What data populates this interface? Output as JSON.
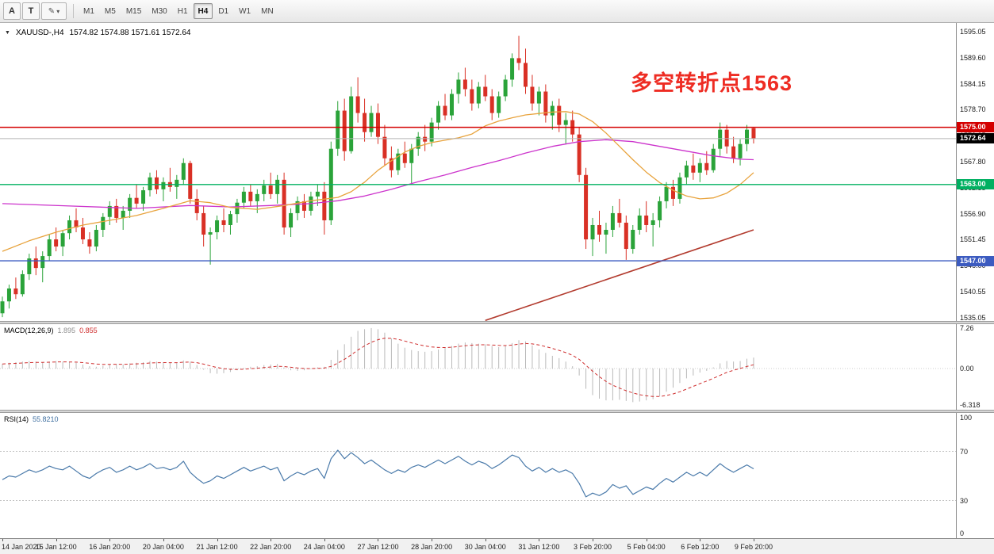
{
  "colors": {
    "candle_up": "#2aa339",
    "candle_down": "#d93025",
    "ma_orange": "#e8a33d",
    "ma_magenta": "#cc33cc",
    "trendline": "#b23b2e",
    "macd_hist": "#b9b9b9",
    "macd_signal": "#cf2e2e",
    "rsi_line": "#4a7aaa",
    "rsi_level": "#c4c4c4",
    "bid_line": "#b5b5b5",
    "annotation": "#ee2c23"
  },
  "toolbar": {
    "buttons": [
      {
        "label": "A",
        "name": "text-label-tool-button"
      },
      {
        "label": "T",
        "name": "template-tool-button"
      }
    ],
    "draw_button": {
      "glyph": "✎",
      "caret": "▾"
    },
    "timeframes": [
      "M1",
      "M5",
      "M15",
      "M30",
      "H1",
      "H4",
      "D1",
      "W1",
      "MN"
    ],
    "active_timeframe": "H4"
  },
  "chart": {
    "dropdown_icon": "▼",
    "title": "XAUUSD-,H4",
    "ohlc_display": "1574.82 1574.88 1571.61 1572.64",
    "annotation": {
      "text": "多空转折点1563"
    },
    "levels": [
      {
        "price": 1575.0,
        "label": "1575.00",
        "color": "#d40000"
      },
      {
        "price": 1563.0,
        "label": "1563.00",
        "color": "#00b061"
      },
      {
        "price": 1547.0,
        "label": "1547.00",
        "color": "#3c5bc0"
      }
    ],
    "bid": {
      "price": 1572.64,
      "label": "1572.64",
      "color": "#000000"
    }
  },
  "chart_data": {
    "type": "candlestick",
    "symbol": "XAUUSD-",
    "timeframe": "H4",
    "title": "XAUUSD-,H4 1574.82 1574.88 1571.61 1572.64",
    "y_axis_labels": [
      "1595.05",
      "1589.60",
      "1584.15",
      "1578.70",
      "1573.25",
      "1567.80",
      "1562.35",
      "1556.90",
      "1551.45",
      "1546.00",
      "1540.55",
      "1535.05"
    ],
    "x_labels": [
      "14 Jan 2020",
      "15 Jan 12:00",
      "16 Jan 20:00",
      "20 Jan 04:00",
      "21 Jan 12:00",
      "22 Jan 20:00",
      "24 Jan 04:00",
      "27 Jan 12:00",
      "28 Jan 20:00",
      "30 Jan 04:00",
      "31 Jan 12:00",
      "3 Feb 20:00",
      "5 Feb 04:00",
      "6 Feb 12:00",
      "9 Feb 20:00"
    ],
    "x_label_every": 8,
    "candles": [
      [
        1536.0,
        1539.5,
        1535.2,
        1538.5
      ],
      [
        1538.5,
        1542.0,
        1537.0,
        1541.2
      ],
      [
        1541.2,
        1543.5,
        1539.0,
        1540.0
      ],
      [
        1540.0,
        1545.0,
        1539.5,
        1544.2
      ],
      [
        1544.2,
        1548.5,
        1543.0,
        1547.5
      ],
      [
        1547.5,
        1550.0,
        1544.0,
        1545.5
      ],
      [
        1545.5,
        1549.0,
        1542.5,
        1548.0
      ],
      [
        1548.0,
        1552.5,
        1547.0,
        1551.5
      ],
      [
        1551.5,
        1554.0,
        1549.0,
        1550.0
      ],
      [
        1550.0,
        1553.5,
        1548.0,
        1552.8
      ],
      [
        1552.8,
        1556.5,
        1551.5,
        1555.5
      ],
      [
        1555.5,
        1558.0,
        1553.0,
        1554.0
      ],
      [
        1554.0,
        1556.0,
        1550.5,
        1551.5
      ],
      [
        1551.5,
        1553.0,
        1548.5,
        1550.0
      ],
      [
        1550.0,
        1554.5,
        1549.0,
        1553.5
      ],
      [
        1553.5,
        1557.0,
        1552.0,
        1556.2
      ],
      [
        1556.2,
        1559.5,
        1554.5,
        1558.5
      ],
      [
        1558.5,
        1560.0,
        1555.0,
        1556.0
      ],
      [
        1556.0,
        1558.5,
        1553.5,
        1557.5
      ],
      [
        1557.5,
        1561.0,
        1556.0,
        1560.2
      ],
      [
        1560.2,
        1563.0,
        1558.0,
        1559.0
      ],
      [
        1559.0,
        1562.5,
        1557.5,
        1561.8
      ],
      [
        1561.8,
        1565.5,
        1560.5,
        1564.5
      ],
      [
        1564.5,
        1566.0,
        1561.0,
        1562.0
      ],
      [
        1562.0,
        1564.5,
        1559.5,
        1563.5
      ],
      [
        1563.5,
        1566.5,
        1561.5,
        1562.5
      ],
      [
        1562.5,
        1565.0,
        1560.0,
        1564.0
      ],
      [
        1564.0,
        1568.5,
        1563.0,
        1567.5
      ],
      [
        1567.5,
        1568.0,
        1559.0,
        1560.0
      ],
      [
        1560.0,
        1562.0,
        1555.5,
        1557.0
      ],
      [
        1557.0,
        1558.5,
        1550.0,
        1552.5
      ],
      [
        1552.5,
        1554.0,
        1546.2,
        1553.0
      ],
      [
        1553.0,
        1556.5,
        1551.5,
        1555.5
      ],
      [
        1555.5,
        1558.0,
        1553.0,
        1554.5
      ],
      [
        1554.5,
        1557.5,
        1552.5,
        1556.8
      ],
      [
        1556.8,
        1560.0,
        1555.0,
        1559.2
      ],
      [
        1559.2,
        1562.5,
        1558.0,
        1561.5
      ],
      [
        1561.5,
        1563.0,
        1558.5,
        1559.5
      ],
      [
        1559.5,
        1562.0,
        1557.0,
        1561.0
      ],
      [
        1561.0,
        1564.0,
        1559.5,
        1562.8
      ],
      [
        1562.8,
        1565.5,
        1560.0,
        1561.0
      ],
      [
        1561.0,
        1565.0,
        1559.0,
        1564.0
      ],
      [
        1564.0,
        1565.5,
        1552.5,
        1554.0
      ],
      [
        1554.0,
        1558.0,
        1552.0,
        1557.0
      ],
      [
        1557.0,
        1560.5,
        1555.5,
        1559.5
      ],
      [
        1559.5,
        1561.0,
        1556.0,
        1557.5
      ],
      [
        1557.5,
        1561.5,
        1556.5,
        1560.5
      ],
      [
        1560.5,
        1563.0,
        1558.5,
        1561.5
      ],
      [
        1561.5,
        1563.5,
        1552.5,
        1555.5
      ],
      [
        1555.5,
        1572.0,
        1554.5,
        1570.5
      ],
      [
        1570.5,
        1580.5,
        1569.0,
        1578.5
      ],
      [
        1578.5,
        1581.0,
        1568.0,
        1570.0
      ],
      [
        1570.0,
        1583.5,
        1569.5,
        1581.5
      ],
      [
        1581.5,
        1585.5,
        1576.0,
        1578.0
      ],
      [
        1578.0,
        1581.0,
        1572.0,
        1574.0
      ],
      [
        1574.0,
        1579.5,
        1573.0,
        1578.0
      ],
      [
        1578.0,
        1580.0,
        1571.5,
        1573.0
      ],
      [
        1573.0,
        1575.5,
        1567.0,
        1568.5
      ],
      [
        1568.5,
        1571.0,
        1564.5,
        1566.0
      ],
      [
        1566.0,
        1570.5,
        1565.0,
        1569.5
      ],
      [
        1569.5,
        1572.0,
        1566.5,
        1567.5
      ],
      [
        1567.5,
        1571.5,
        1563.3,
        1570.5
      ],
      [
        1570.5,
        1574.0,
        1569.0,
        1573.0
      ],
      [
        1573.0,
        1575.5,
        1570.0,
        1572.0
      ],
      [
        1572.0,
        1577.0,
        1571.0,
        1576.0
      ],
      [
        1576.0,
        1580.5,
        1574.5,
        1579.5
      ],
      [
        1579.5,
        1582.0,
        1576.5,
        1577.5
      ],
      [
        1577.5,
        1583.0,
        1576.5,
        1582.0
      ],
      [
        1582.0,
        1586.5,
        1580.0,
        1585.0
      ],
      [
        1585.0,
        1587.5,
        1581.5,
        1583.0
      ],
      [
        1583.0,
        1585.0,
        1578.5,
        1580.0
      ],
      [
        1580.0,
        1584.5,
        1579.0,
        1583.5
      ],
      [
        1583.5,
        1586.0,
        1580.5,
        1581.5
      ],
      [
        1581.5,
        1583.0,
        1576.5,
        1578.0
      ],
      [
        1578.0,
        1582.5,
        1577.0,
        1581.5
      ],
      [
        1581.5,
        1586.0,
        1580.5,
        1585.0
      ],
      [
        1585.0,
        1590.5,
        1583.5,
        1589.5
      ],
      [
        1589.5,
        1594.2,
        1587.0,
        1588.5
      ],
      [
        1588.5,
        1591.5,
        1582.0,
        1583.5
      ],
      [
        1583.5,
        1586.0,
        1578.5,
        1580.0
      ],
      [
        1580.0,
        1583.5,
        1577.5,
        1582.5
      ],
      [
        1582.5,
        1584.0,
        1576.0,
        1577.5
      ],
      [
        1577.5,
        1580.5,
        1574.5,
        1579.5
      ],
      [
        1579.5,
        1581.0,
        1574.0,
        1575.5
      ],
      [
        1575.5,
        1578.0,
        1571.5,
        1576.5
      ],
      [
        1576.5,
        1578.5,
        1572.0,
        1573.5
      ],
      [
        1573.5,
        1575.0,
        1563.5,
        1565.0
      ],
      [
        1565.0,
        1566.5,
        1549.5,
        1551.5
      ],
      [
        1551.5,
        1556.0,
        1548.0,
        1554.5
      ],
      [
        1554.5,
        1557.5,
        1551.0,
        1552.5
      ],
      [
        1552.5,
        1555.0,
        1548.5,
        1553.5
      ],
      [
        1553.5,
        1558.5,
        1552.0,
        1557.0
      ],
      [
        1557.0,
        1560.0,
        1554.0,
        1555.0
      ],
      [
        1555.0,
        1556.5,
        1547.2,
        1549.5
      ],
      [
        1549.5,
        1554.5,
        1548.5,
        1553.5
      ],
      [
        1553.5,
        1558.0,
        1552.5,
        1556.5
      ],
      [
        1556.5,
        1559.5,
        1553.0,
        1554.5
      ],
      [
        1554.5,
        1557.0,
        1550.0,
        1555.5
      ],
      [
        1555.5,
        1560.5,
        1554.0,
        1559.5
      ],
      [
        1559.5,
        1563.5,
        1558.0,
        1562.5
      ],
      [
        1562.5,
        1564.0,
        1558.5,
        1560.0
      ],
      [
        1560.0,
        1565.5,
        1559.0,
        1564.5
      ],
      [
        1564.5,
        1568.0,
        1563.0,
        1567.0
      ],
      [
        1567.0,
        1569.5,
        1564.0,
        1565.5
      ],
      [
        1565.5,
        1568.5,
        1563.5,
        1567.5
      ],
      [
        1567.5,
        1570.0,
        1565.0,
        1566.0
      ],
      [
        1566.0,
        1571.5,
        1565.5,
        1570.5
      ],
      [
        1570.5,
        1576.0,
        1569.0,
        1574.5
      ],
      [
        1574.5,
        1575.5,
        1569.5,
        1571.0
      ],
      [
        1571.0,
        1573.0,
        1567.5,
        1568.5
      ],
      [
        1568.5,
        1572.5,
        1567.0,
        1571.5
      ],
      [
        1571.5,
        1575.5,
        1570.0,
        1574.5
      ],
      [
        1574.82,
        1574.88,
        1571.61,
        1572.64
      ]
    ],
    "ma_magenta": [
      [
        0,
        1559
      ],
      [
        10,
        1558.5
      ],
      [
        20,
        1558
      ],
      [
        28,
        1558.6
      ],
      [
        34,
        1558.3
      ],
      [
        40,
        1558.6
      ],
      [
        46,
        1559
      ],
      [
        50,
        1559.6
      ],
      [
        54,
        1560.6
      ],
      [
        58,
        1562
      ],
      [
        62,
        1563.6
      ],
      [
        66,
        1565
      ],
      [
        70,
        1566.6
      ],
      [
        74,
        1568
      ],
      [
        78,
        1569.6
      ],
      [
        82,
        1571
      ],
      [
        86,
        1572
      ],
      [
        90,
        1572.4
      ],
      [
        94,
        1572
      ],
      [
        98,
        1571
      ],
      [
        102,
        1570
      ],
      [
        106,
        1569
      ],
      [
        110,
        1568.3
      ],
      [
        112,
        1568.2
      ]
    ],
    "ma_orange": [
      [
        0,
        1549
      ],
      [
        4,
        1551.2
      ],
      [
        8,
        1553
      ],
      [
        12,
        1554.5
      ],
      [
        16,
        1555.5
      ],
      [
        20,
        1556.5
      ],
      [
        24,
        1558
      ],
      [
        28,
        1559.6
      ],
      [
        31,
        1559.2
      ],
      [
        34,
        1558.2
      ],
      [
        38,
        1557.8
      ],
      [
        42,
        1558.6
      ],
      [
        46,
        1559.6
      ],
      [
        50,
        1560.3
      ],
      [
        52,
        1561.5
      ],
      [
        54,
        1563.5
      ],
      [
        56,
        1566
      ],
      [
        58,
        1568
      ],
      [
        60,
        1569.8
      ],
      [
        62,
        1571
      ],
      [
        64,
        1571.8
      ],
      [
        66,
        1572.3
      ],
      [
        68,
        1572.8
      ],
      [
        70,
        1573.6
      ],
      [
        72,
        1575.3
      ],
      [
        74,
        1576.3
      ],
      [
        76,
        1577
      ],
      [
        78,
        1577.6
      ],
      [
        80,
        1577.9
      ],
      [
        82,
        1578.2
      ],
      [
        84,
        1578.3
      ],
      [
        86,
        1577.8
      ],
      [
        88,
        1576.2
      ],
      [
        90,
        1573.8
      ],
      [
        92,
        1571
      ],
      [
        94,
        1568.2
      ],
      [
        96,
        1565.6
      ],
      [
        98,
        1563.4
      ],
      [
        100,
        1561.8
      ],
      [
        102,
        1560.6
      ],
      [
        104,
        1560
      ],
      [
        106,
        1560.2
      ],
      [
        108,
        1561.2
      ],
      [
        110,
        1563
      ],
      [
        112,
        1565.5
      ]
    ],
    "trendline": [
      [
        72,
        1534.5
      ],
      [
        112,
        1553.5
      ]
    ],
    "macd": {
      "label": "MACD(12,26,9)",
      "current": "1.895",
      "signal_current": "0.855",
      "axis_labels": [
        "7.26",
        "0.00",
        "-6.318"
      ],
      "values": [
        0.8,
        1.0,
        1.1,
        1.2,
        1.3,
        1.2,
        1.1,
        1.2,
        1.3,
        1.2,
        1.1,
        1.0,
        0.7,
        0.4,
        0.3,
        0.5,
        0.7,
        0.8,
        0.7,
        0.9,
        1.0,
        1.1,
        1.3,
        1.2,
        1.1,
        1.0,
        1.0,
        1.4,
        1.2,
        0.6,
        -0.2,
        -0.8,
        -0.9,
        -0.8,
        -0.6,
        -0.3,
        0.1,
        0.3,
        0.4,
        0.6,
        0.7,
        0.8,
        0.2,
        -0.3,
        -0.4,
        -0.3,
        -0.1,
        0.2,
        0.3,
        1.5,
        3.2,
        4.2,
        5.5,
        6.5,
        6.8,
        7.0,
        6.8,
        6.2,
        5.2,
        4.3,
        3.6,
        3.2,
        3.0,
        2.9,
        3.0,
        3.3,
        3.6,
        3.9,
        4.3,
        4.5,
        4.4,
        4.3,
        4.2,
        3.9,
        3.7,
        3.9,
        4.4,
        4.9,
        4.7,
        4.0,
        3.3,
        2.7,
        2.2,
        1.8,
        1.2,
        0.4,
        -1.2,
        -3.5,
        -4.6,
        -5.2,
        -5.5,
        -5.5,
        -5.4,
        -5.6,
        -5.8,
        -5.7,
        -5.5,
        -5.3,
        -4.8,
        -4.0,
        -3.3,
        -2.5,
        -1.7,
        -1.2,
        -0.7,
        -0.4,
        0.2,
        0.9,
        1.3,
        1.2,
        1.3,
        1.7,
        1.895
      ]
    },
    "rsi": {
      "label": "RSI(14)",
      "current": "55.8210",
      "levels": [
        70,
        30
      ],
      "axis_labels": [
        "100",
        "70",
        "30",
        "0"
      ],
      "values": [
        47,
        50,
        49,
        52,
        55,
        53,
        55,
        58,
        56,
        55,
        58,
        54,
        50,
        48,
        52,
        55,
        57,
        53,
        55,
        58,
        55,
        57,
        60,
        56,
        57,
        55,
        57,
        62,
        53,
        48,
        44,
        46,
        50,
        48,
        51,
        54,
        57,
        54,
        56,
        58,
        55,
        57,
        46,
        50,
        53,
        51,
        54,
        56,
        48,
        64,
        71,
        64,
        69,
        65,
        60,
        63,
        59,
        55,
        52,
        55,
        53,
        57,
        59,
        57,
        60,
        63,
        60,
        63,
        66,
        62,
        59,
        62,
        60,
        56,
        59,
        63,
        67,
        65,
        58,
        54,
        57,
        53,
        56,
        53,
        55,
        52,
        44,
        33,
        36,
        34,
        37,
        43,
        40,
        42,
        35,
        38,
        41,
        39,
        44,
        48,
        45,
        49,
        53,
        50,
        53,
        50,
        55,
        60,
        56,
        53,
        56,
        59,
        55.82
      ]
    }
  }
}
